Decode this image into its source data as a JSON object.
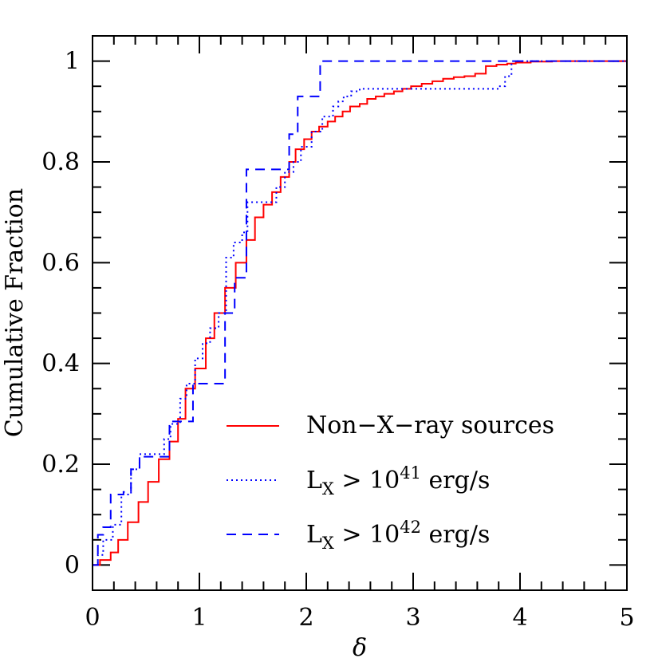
{
  "chart_data": {
    "type": "line",
    "step": true,
    "xlabel": "δ",
    "ylabel": "Cumulative Fraction",
    "xlim": [
      0,
      5
    ],
    "ylim": [
      -0.05,
      1.05
    ],
    "x_ticks": [
      0,
      1,
      2,
      3,
      4,
      5
    ],
    "y_ticks": [
      0,
      0.2,
      0.4,
      0.6,
      0.8,
      1
    ],
    "x_tick_labels": [
      "0",
      "1",
      "2",
      "3",
      "4",
      "5"
    ],
    "y_tick_labels": [
      "0",
      "0.2",
      "0.4",
      "0.6",
      "0.8",
      "1"
    ],
    "legend_position": "bottom-right",
    "series": [
      {
        "name": "Non-X-ray sources",
        "color": "#ff0000",
        "style": "solid",
        "x": [
          0,
          0.07,
          0.17,
          0.24,
          0.33,
          0.43,
          0.52,
          0.62,
          0.72,
          0.8,
          0.87,
          0.96,
          1.06,
          1.14,
          1.24,
          1.34,
          1.44,
          1.52,
          1.6,
          1.68,
          1.76,
          1.84,
          1.9,
          1.98,
          2.05,
          2.12,
          2.2,
          2.27,
          2.34,
          2.41,
          2.5,
          2.57,
          2.65,
          2.73,
          2.82,
          2.9,
          2.98,
          3.08,
          3.18,
          3.28,
          3.38,
          3.48,
          3.58,
          3.68,
          3.78,
          3.88,
          3.96,
          4.1,
          4.3,
          4.6,
          5.0
        ],
        "y": [
          0,
          0.01,
          0.025,
          0.05,
          0.085,
          0.125,
          0.165,
          0.21,
          0.245,
          0.29,
          0.35,
          0.39,
          0.45,
          0.5,
          0.55,
          0.6,
          0.645,
          0.69,
          0.715,
          0.74,
          0.77,
          0.8,
          0.825,
          0.845,
          0.86,
          0.87,
          0.88,
          0.89,
          0.9,
          0.91,
          0.915,
          0.925,
          0.93,
          0.935,
          0.94,
          0.945,
          0.95,
          0.955,
          0.96,
          0.965,
          0.968,
          0.97,
          0.975,
          0.99,
          0.993,
          0.995,
          0.997,
          0.999,
          1.0,
          1.0,
          1.0
        ]
      },
      {
        "name": "Lx > 1041 erg/s",
        "color": "#0000ff",
        "style": "dotted",
        "x": [
          0,
          0.05,
          0.1,
          0.19,
          0.27,
          0.36,
          0.44,
          0.6,
          0.67,
          0.73,
          0.82,
          0.88,
          0.96,
          1.03,
          1.1,
          1.18,
          1.25,
          1.32,
          1.4,
          1.45,
          1.55,
          1.65,
          1.72,
          1.8,
          1.88,
          1.95,
          2.05,
          2.15,
          2.25,
          2.3,
          2.35,
          2.42,
          2.5,
          2.58,
          3.8,
          3.86,
          3.92,
          5.0
        ],
        "y": [
          0,
          0.02,
          0.05,
          0.08,
          0.14,
          0.19,
          0.22,
          0.22,
          0.25,
          0.28,
          0.33,
          0.36,
          0.41,
          0.44,
          0.47,
          0.5,
          0.61,
          0.64,
          0.66,
          0.72,
          0.72,
          0.72,
          0.75,
          0.78,
          0.8,
          0.83,
          0.86,
          0.89,
          0.91,
          0.92,
          0.93,
          0.94,
          0.945,
          0.945,
          0.95,
          0.97,
          1.0,
          1.0
        ]
      },
      {
        "name": "Lx > 1042 erg/s",
        "color": "#0000ff",
        "style": "dashed",
        "x": [
          0,
          0.05,
          0.1,
          0.17,
          0.29,
          0.36,
          0.44,
          0.56,
          0.64,
          0.72,
          0.86,
          0.94,
          1.02,
          1.12,
          1.24,
          1.29,
          1.33,
          1.37,
          1.44,
          1.53,
          1.65,
          1.73,
          1.84,
          1.92,
          1.98,
          2.13,
          2.17,
          5.0
        ],
        "y": [
          0,
          0.06,
          0.075,
          0.14,
          0.145,
          0.19,
          0.215,
          0.215,
          0.215,
          0.285,
          0.285,
          0.36,
          0.36,
          0.36,
          0.5,
          0.5,
          0.57,
          0.57,
          0.785,
          0.785,
          0.785,
          0.785,
          0.855,
          0.93,
          0.93,
          1.0,
          1.0,
          1.0
        ]
      }
    ],
    "legend": [
      {
        "label_main": "Non−X−ray sources",
        "label_sub": "",
        "label_rest": "",
        "label_sup": "",
        "label_tail": ""
      },
      {
        "label_main": "L",
        "label_sub": "X",
        "label_rest": " > 10",
        "label_sup": "41",
        "label_tail": " erg/s"
      },
      {
        "label_main": "L",
        "label_sub": "X",
        "label_rest": " > 10",
        "label_sup": "42",
        "label_tail": " erg/s"
      }
    ]
  }
}
